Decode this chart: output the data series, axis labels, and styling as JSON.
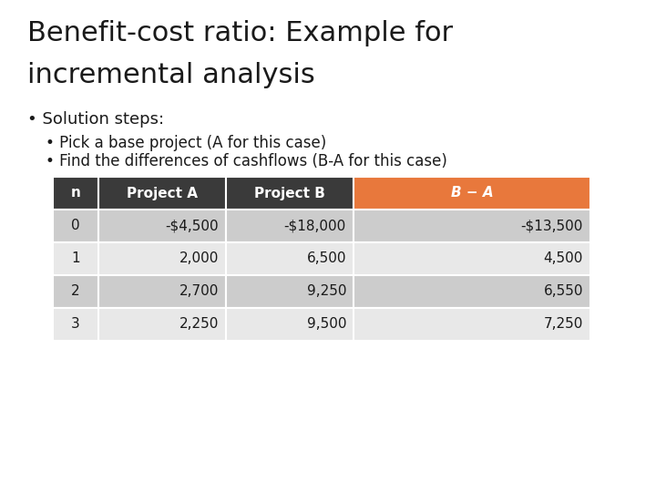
{
  "title_line1": "Benefit-cost ratio: Example for",
  "title_line2": "incremental analysis",
  "bullet1": "Solution steps:",
  "bullet2": "Pick a base project (A for this case)",
  "bullet3": "Find the differences of cashflows (B-A for this case)",
  "table_headers": [
    "n",
    "Project A",
    "Project B",
    "B − A"
  ],
  "table_rows": [
    [
      "0",
      "-$4,500",
      "-$18,000",
      "-$13,500"
    ],
    [
      "1",
      "2,000",
      "6,500",
      "4,500"
    ],
    [
      "2",
      "2,700",
      "9,250",
      "6,550"
    ],
    [
      "3",
      "2,250",
      "9,500",
      "7,250"
    ]
  ],
  "header_bg_dark": "#3a3a3a",
  "header_bg_orange": "#e8783c",
  "header_text_color": "#ffffff",
  "row_bg_light": "#cccccc",
  "row_bg_lighter": "#e8e8e8",
  "background_color": "#ffffff",
  "title_fontsize": 22,
  "body_fontsize": 12,
  "table_fontsize": 11,
  "text_color": "#1a1a1a"
}
